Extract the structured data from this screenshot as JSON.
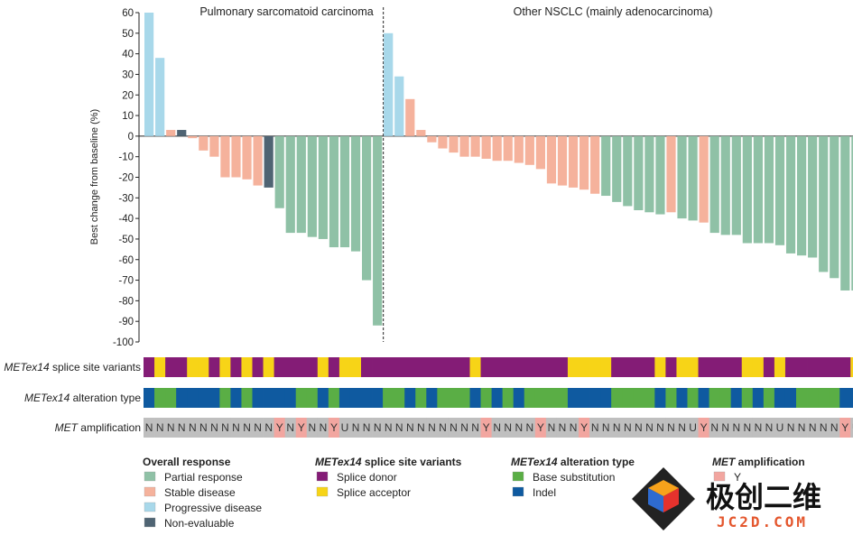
{
  "chart_data": {
    "type": "bar",
    "title": "",
    "ylabel": "Best change from baseline (%)",
    "xlabel": "",
    "ylim": [
      -100,
      60
    ],
    "yticks": [
      60,
      50,
      40,
      30,
      20,
      10,
      0,
      -10,
      -20,
      -30,
      -40,
      -50,
      -60,
      -70,
      -80,
      -90,
      -100
    ],
    "groups": [
      {
        "name": "Pulmonary sarcomatoid carcinoma",
        "count": 22
      },
      {
        "name": "Other NSCLC (mainly adenocarcinoma)",
        "count": 42
      }
    ],
    "response_colors": {
      "PR": "#8fc1a6",
      "SD": "#f5b29c",
      "PD": "#a8d8ea",
      "NE": "#4f6473"
    },
    "values": [
      60,
      38,
      3,
      3,
      -1,
      -7,
      -10,
      -20,
      -20,
      -21,
      -24,
      -25,
      -35,
      -47,
      -47,
      -49,
      -50,
      -54,
      -54,
      -56,
      -70,
      -92,
      50,
      29,
      18,
      3,
      -3,
      -6,
      -8,
      -10,
      -10,
      -11,
      -12,
      -12,
      -13,
      -14,
      -16,
      -23,
      -24,
      -25,
      -26,
      -28,
      -29,
      -32,
      -34,
      -36,
      -37,
      -38,
      -37,
      -40,
      -41,
      -42,
      -47,
      -48,
      -48,
      -52,
      -52,
      -52,
      -53,
      -57,
      -58,
      -59,
      -66,
      -69,
      -75,
      -75
    ],
    "responses": [
      "PD",
      "PD",
      "SD",
      "NE",
      "SD",
      "SD",
      "SD",
      "SD",
      "SD",
      "SD",
      "SD",
      "NE",
      "PR",
      "PR",
      "PR",
      "PR",
      "PR",
      "PR",
      "PR",
      "PR",
      "PR",
      "PR",
      "PD",
      "PD",
      "SD",
      "SD",
      "SD",
      "SD",
      "SD",
      "SD",
      "SD",
      "SD",
      "SD",
      "SD",
      "SD",
      "SD",
      "SD",
      "SD",
      "SD",
      "SD",
      "SD",
      "SD",
      "PR",
      "PR",
      "PR",
      "PR",
      "PR",
      "PR",
      "SD",
      "PR",
      "PR",
      "SD",
      "PR",
      "PR",
      "PR",
      "PR",
      "PR",
      "PR",
      "PR",
      "PR",
      "PR",
      "PR",
      "PR",
      "PR",
      "PR",
      "PR"
    ],
    "tracks": [
      {
        "label_prefix": "METex14",
        "label_suffix": " splice site variants",
        "values": [
          "D",
          "A",
          "D",
          "D",
          "A",
          "A",
          "D",
          "A",
          "D",
          "A",
          "D",
          "A",
          "D",
          "D",
          "D",
          "D",
          "A",
          "D",
          "A",
          "A",
          "D",
          "D",
          "D",
          "D",
          "D",
          "D",
          "D",
          "D",
          "D",
          "D",
          "A",
          "D",
          "D",
          "D",
          "D",
          "D",
          "D",
          "D",
          "D",
          "A",
          "A",
          "A",
          "A",
          "D",
          "D",
          "D",
          "D",
          "A",
          "D",
          "A",
          "A",
          "D",
          "D",
          "D",
          "D",
          "A",
          "A",
          "D",
          "A",
          "D",
          "D",
          "D",
          "D",
          "D",
          "D",
          "A"
        ]
      },
      {
        "label_prefix": "METex14",
        "label_suffix": " alteration type",
        "values": [
          "I",
          "B",
          "B",
          "I",
          "I",
          "I",
          "I",
          "B",
          "I",
          "B",
          "I",
          "I",
          "I",
          "I",
          "B",
          "B",
          "I",
          "B",
          "I",
          "I",
          "I",
          "I",
          "B",
          "B",
          "I",
          "B",
          "I",
          "B",
          "B",
          "B",
          "I",
          "B",
          "I",
          "B",
          "I",
          "B",
          "B",
          "B",
          "B",
          "I",
          "I",
          "I",
          "I",
          "B",
          "B",
          "B",
          "B",
          "I",
          "B",
          "I",
          "B",
          "I",
          "B",
          "B",
          "I",
          "B",
          "I",
          "B",
          "I",
          "I",
          "B",
          "B",
          "B",
          "B",
          "I",
          "I"
        ]
      },
      {
        "label_prefix": "MET",
        "label_suffix": " amplification",
        "values": [
          "N",
          "N",
          "N",
          "N",
          "N",
          "N",
          "N",
          "N",
          "N",
          "N",
          "N",
          "N",
          "Y",
          "N",
          "Y",
          "N",
          "N",
          "Y",
          "U",
          "N",
          "N",
          "N",
          "N",
          "N",
          "N",
          "N",
          "N",
          "N",
          "N",
          "N",
          "N",
          "Y",
          "N",
          "N",
          "N",
          "N",
          "Y",
          "N",
          "N",
          "N",
          "Y",
          "N",
          "N",
          "N",
          "N",
          "N",
          "N",
          "N",
          "N",
          "N",
          "U",
          "Y",
          "N",
          "N",
          "N",
          "N",
          "N",
          "N",
          "U",
          "N",
          "N",
          "N",
          "N",
          "N",
          "Y",
          "U"
        ]
      }
    ],
    "splice_colors": {
      "D": "#841c76",
      "A": "#f7d417"
    },
    "alteration_colors": {
      "B": "#5aae45",
      "I": "#0f5aa0"
    },
    "amp_colors": {
      "N": "#bfbfbf",
      "Y": "#f2a6a0",
      "U": "#bfbfbf"
    },
    "legends": [
      {
        "title": "Overall response",
        "items": [
          {
            "label": "Partial response",
            "color": "#8fc1a6"
          },
          {
            "label": "Stable disease",
            "color": "#f5b29c"
          },
          {
            "label": "Progressive disease",
            "color": "#a8d8ea"
          },
          {
            "label": "Non-evaluable",
            "color": "#4f6473"
          }
        ]
      },
      {
        "title_prefix": "METex14",
        "title_suffix": " splice site variants",
        "items": [
          {
            "label": "Splice donor",
            "color": "#841c76"
          },
          {
            "label": "Splice acceptor",
            "color": "#f7d417"
          }
        ]
      },
      {
        "title_prefix": "METex14",
        "title_suffix": " alteration type",
        "items": [
          {
            "label": "Base substitution",
            "color": "#5aae45"
          },
          {
            "label": "Indel",
            "color": "#0f5aa0"
          }
        ]
      },
      {
        "title_prefix": "MET",
        "title_suffix": " amplification",
        "items": [
          {
            "label": "Y",
            "color": "#f2a6a0"
          }
        ]
      }
    ]
  },
  "watermark": {
    "name": "极创二维",
    "url": "JC2D.COM"
  }
}
